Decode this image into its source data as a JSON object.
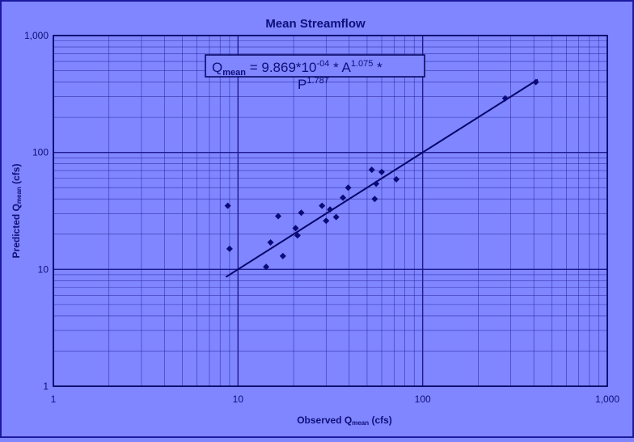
{
  "chart_data": {
    "type": "scatter",
    "title": "Mean Streamflow",
    "xlabel": {
      "prefix": "Observed Q",
      "sub": "mean",
      "suffix": " (cfs)"
    },
    "ylabel": {
      "prefix": "Predicted Q",
      "sub": "mean",
      "suffix": " (cfs)"
    },
    "x_scale": "log",
    "y_scale": "log",
    "xlim": [
      1,
      1000
    ],
    "ylim": [
      1,
      1000
    ],
    "x_ticks": [
      {
        "value": 1,
        "label": "1"
      },
      {
        "value": 10,
        "label": "10"
      },
      {
        "value": 100,
        "label": "100"
      },
      {
        "value": 1000,
        "label": "1,000"
      }
    ],
    "y_ticks": [
      {
        "value": 1,
        "label": "1"
      },
      {
        "value": 10,
        "label": "10"
      },
      {
        "value": 100,
        "label": "100"
      },
      {
        "value": 1000,
        "label": "1,000"
      }
    ],
    "grid": true,
    "equation": {
      "q": "Q",
      "q_sub": "mean",
      "mid": " = 9.869*10",
      "exp1": "-04",
      "a_part": " * A",
      "exp2": "1.075",
      "end": " *",
      "p": "P",
      "exp3": "1.787"
    },
    "points": [
      {
        "x": 8.8,
        "y": 35
      },
      {
        "x": 9.0,
        "y": 15
      },
      {
        "x": 14.2,
        "y": 10.5
      },
      {
        "x": 15.0,
        "y": 17
      },
      {
        "x": 16.5,
        "y": 28.5
      },
      {
        "x": 17.5,
        "y": 13
      },
      {
        "x": 20.5,
        "y": 22.5
      },
      {
        "x": 21.0,
        "y": 19.5
      },
      {
        "x": 22.0,
        "y": 30.5
      },
      {
        "x": 28.5,
        "y": 35
      },
      {
        "x": 30.0,
        "y": 26
      },
      {
        "x": 31.5,
        "y": 32.5
      },
      {
        "x": 34.0,
        "y": 28
      },
      {
        "x": 37.0,
        "y": 41
      },
      {
        "x": 39.5,
        "y": 50
      },
      {
        "x": 53.0,
        "y": 71
      },
      {
        "x": 55.0,
        "y": 40
      },
      {
        "x": 56.0,
        "y": 54
      },
      {
        "x": 60.0,
        "y": 68
      },
      {
        "x": 72.0,
        "y": 59
      },
      {
        "x": 280,
        "y": 290
      },
      {
        "x": 410,
        "y": 400
      }
    ],
    "fit_line": [
      {
        "x": 8.6,
        "y": 8.6
      },
      {
        "x": 420,
        "y": 420
      }
    ],
    "colors": {
      "background": "#7f86ff",
      "plot_area": "#7f86ff",
      "grid": "#1d1a92",
      "axis": "#00005a",
      "marker": "#0a0a78",
      "line": "#06066a",
      "text": "#0f0f7a",
      "frame": "#1b1aa0"
    }
  }
}
